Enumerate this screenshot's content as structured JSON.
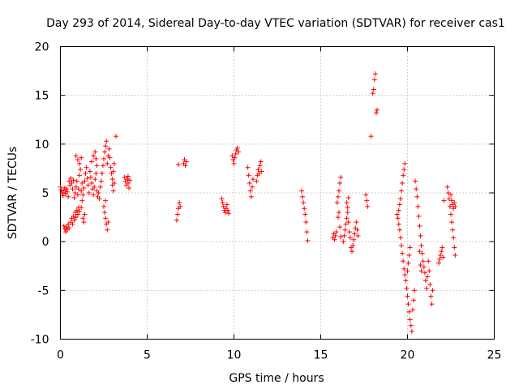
{
  "chart_data": {
    "type": "scatter",
    "title": "Day 293 of 2014, Sidereal Day-to-day VTEC variation (SDTVAR) for receiver cas1",
    "xlabel": "GPS time / hours",
    "ylabel": "SDTVAR / TECUs",
    "xlim": [
      0,
      25
    ],
    "ylim": [
      -10,
      20
    ],
    "xticks": [
      "0",
      "5",
      "10",
      "15",
      "20",
      "25"
    ],
    "yticks": [
      "-10",
      "-5",
      "0",
      "5",
      "10",
      "15",
      "20"
    ],
    "grid": true,
    "marker": "+",
    "series": [
      {
        "name": "cas1",
        "color": "#ff0000",
        "points": [
          [
            0.0,
            5.6
          ],
          [
            0.05,
            5.3
          ],
          [
            0.1,
            5.0
          ],
          [
            0.15,
            4.7
          ],
          [
            0.2,
            5.2
          ],
          [
            0.25,
            5.5
          ],
          [
            0.3,
            4.9
          ],
          [
            0.35,
            5.4
          ],
          [
            0.4,
            5.1
          ],
          [
            0.45,
            4.6
          ],
          [
            0.2,
            1.6
          ],
          [
            0.25,
            1.3
          ],
          [
            0.3,
            1.0
          ],
          [
            0.35,
            1.5
          ],
          [
            0.4,
            1.2
          ],
          [
            0.45,
            1.8
          ],
          [
            0.5,
            1.4
          ],
          [
            0.5,
            6.2
          ],
          [
            0.55,
            5.8
          ],
          [
            0.6,
            6.5
          ],
          [
            0.65,
            6.0
          ],
          [
            0.7,
            5.4
          ],
          [
            0.75,
            6.3
          ],
          [
            0.6,
            2.0
          ],
          [
            0.65,
            2.4
          ],
          [
            0.7,
            1.8
          ],
          [
            0.75,
            2.6
          ],
          [
            0.8,
            2.2
          ],
          [
            0.85,
            3.0
          ],
          [
            0.9,
            2.5
          ],
          [
            0.95,
            3.2
          ],
          [
            1.0,
            2.8
          ],
          [
            1.05,
            3.5
          ],
          [
            1.1,
            3.1
          ],
          [
            0.8,
            4.5
          ],
          [
            0.85,
            5.0
          ],
          [
            0.9,
            5.6
          ],
          [
            0.95,
            6.2
          ],
          [
            1.0,
            4.8
          ],
          [
            1.05,
            5.4
          ],
          [
            1.1,
            6.8
          ],
          [
            1.15,
            7.4
          ],
          [
            1.2,
            5.2
          ],
          [
            1.25,
            6.0
          ],
          [
            0.9,
            8.8
          ],
          [
            1.0,
            8.4
          ],
          [
            1.1,
            8.0
          ],
          [
            1.2,
            8.6
          ],
          [
            1.2,
            3.5
          ],
          [
            1.25,
            4.2
          ],
          [
            1.3,
            4.8
          ],
          [
            1.35,
            5.5
          ],
          [
            1.4,
            6.2
          ],
          [
            1.45,
            7.0
          ],
          [
            1.5,
            7.6
          ],
          [
            1.55,
            6.5
          ],
          [
            1.6,
            5.8
          ],
          [
            1.65,
            5.0
          ],
          [
            1.3,
            2.4
          ],
          [
            1.35,
            2.0
          ],
          [
            1.4,
            2.8
          ],
          [
            1.7,
            7.2
          ],
          [
            1.75,
            6.6
          ],
          [
            1.8,
            6.0
          ],
          [
            1.85,
            5.4
          ],
          [
            1.9,
            4.8
          ],
          [
            1.95,
            5.6
          ],
          [
            2.0,
            6.4
          ],
          [
            2.05,
            7.0
          ],
          [
            2.1,
            5.2
          ],
          [
            2.15,
            4.6
          ],
          [
            1.8,
            8.2
          ],
          [
            1.9,
            8.8
          ],
          [
            2.0,
            9.2
          ],
          [
            2.05,
            8.5
          ],
          [
            2.1,
            7.8
          ],
          [
            2.2,
            5.0
          ],
          [
            2.25,
            4.4
          ],
          [
            2.3,
            5.6
          ],
          [
            2.35,
            6.2
          ],
          [
            2.4,
            7.0
          ],
          [
            2.45,
            7.8
          ],
          [
            2.5,
            8.5
          ],
          [
            2.55,
            9.2
          ],
          [
            2.6,
            9.8
          ],
          [
            2.65,
            10.3
          ],
          [
            2.5,
            3.6
          ],
          [
            2.55,
            3.0
          ],
          [
            2.6,
            2.4
          ],
          [
            2.65,
            1.8
          ],
          [
            2.7,
            1.2
          ],
          [
            2.75,
            2.0
          ],
          [
            2.6,
            4.2
          ],
          [
            2.7,
            8.0
          ],
          [
            2.75,
            8.8
          ],
          [
            2.8,
            9.5
          ],
          [
            2.85,
            8.6
          ],
          [
            2.9,
            7.6
          ],
          [
            2.95,
            7.0
          ],
          [
            3.0,
            6.4
          ],
          [
            3.05,
            7.2
          ],
          [
            3.1,
            8.0
          ],
          [
            3.2,
            10.8
          ],
          [
            3.0,
            5.8
          ],
          [
            3.05,
            5.2
          ],
          [
            3.1,
            6.0
          ],
          [
            3.7,
            6.6
          ],
          [
            3.75,
            6.2
          ],
          [
            3.8,
            5.8
          ],
          [
            3.85,
            6.4
          ],
          [
            3.9,
            6.0
          ],
          [
            3.95,
            5.5
          ],
          [
            4.0,
            6.3
          ],
          [
            3.9,
            6.7
          ],
          [
            6.7,
            2.2
          ],
          [
            6.75,
            2.8
          ],
          [
            6.8,
            3.4
          ],
          [
            6.85,
            4.0
          ],
          [
            6.9,
            3.6
          ],
          [
            6.8,
            7.9
          ],
          [
            7.1,
            8.0
          ],
          [
            7.15,
            8.4
          ],
          [
            7.2,
            7.8
          ],
          [
            7.25,
            8.2
          ],
          [
            9.3,
            4.4
          ],
          [
            9.35,
            4.0
          ],
          [
            9.4,
            3.6
          ],
          [
            9.45,
            3.2
          ],
          [
            9.5,
            3.0
          ],
          [
            9.55,
            3.4
          ],
          [
            9.6,
            3.8
          ],
          [
            9.65,
            3.2
          ],
          [
            9.7,
            2.9
          ],
          [
            9.9,
            8.8
          ],
          [
            9.95,
            8.4
          ],
          [
            10.0,
            8.0
          ],
          [
            10.05,
            8.6
          ],
          [
            10.1,
            9.0
          ],
          [
            10.15,
            9.4
          ],
          [
            10.2,
            9.6
          ],
          [
            10.25,
            9.2
          ],
          [
            10.8,
            7.6
          ],
          [
            10.85,
            6.8
          ],
          [
            10.9,
            6.0
          ],
          [
            10.95,
            5.2
          ],
          [
            11.0,
            4.6
          ],
          [
            11.05,
            5.6
          ],
          [
            11.1,
            6.4
          ],
          [
            11.3,
            6.2
          ],
          [
            11.35,
            6.8
          ],
          [
            11.4,
            7.4
          ],
          [
            11.45,
            7.0
          ],
          [
            11.5,
            7.8
          ],
          [
            11.55,
            8.2
          ],
          [
            11.6,
            7.2
          ],
          [
            13.9,
            5.2
          ],
          [
            13.95,
            4.6
          ],
          [
            14.0,
            4.0
          ],
          [
            14.05,
            3.4
          ],
          [
            14.1,
            2.8
          ],
          [
            14.15,
            2.0
          ],
          [
            14.2,
            1.0
          ],
          [
            14.25,
            0.1
          ],
          [
            15.7,
            0.4
          ],
          [
            15.75,
            0.8
          ],
          [
            15.8,
            0.2
          ],
          [
            15.85,
            0.6
          ],
          [
            15.9,
            1.0
          ],
          [
            15.95,
            4.0
          ],
          [
            16.0,
            4.6
          ],
          [
            16.05,
            5.2
          ],
          [
            16.1,
            6.0
          ],
          [
            16.15,
            6.6
          ],
          [
            16.0,
            2.5
          ],
          [
            16.05,
            3.0
          ],
          [
            16.1,
            1.5
          ],
          [
            16.15,
            0.5
          ],
          [
            16.3,
            0.0
          ],
          [
            16.35,
            0.6
          ],
          [
            16.4,
            1.2
          ],
          [
            16.45,
            1.8
          ],
          [
            16.5,
            2.4
          ],
          [
            16.55,
            3.0
          ],
          [
            16.6,
            2.0
          ],
          [
            16.65,
            1.0
          ],
          [
            16.7,
            0.4
          ],
          [
            16.75,
            -0.6
          ],
          [
            16.5,
            4.0
          ],
          [
            16.55,
            3.5
          ],
          [
            16.6,
            4.5
          ],
          [
            16.8,
            -1.0
          ],
          [
            16.85,
            -0.4
          ],
          [
            16.9,
            0.2
          ],
          [
            16.95,
            0.8
          ],
          [
            17.0,
            1.4
          ],
          [
            17.05,
            2.0
          ],
          [
            17.1,
            1.2
          ],
          [
            17.15,
            0.6
          ],
          [
            17.6,
            4.8
          ],
          [
            17.65,
            4.2
          ],
          [
            17.7,
            3.6
          ],
          [
            17.9,
            10.8
          ],
          [
            18.0,
            15.2
          ],
          [
            18.05,
            15.6
          ],
          [
            18.1,
            16.6
          ],
          [
            18.15,
            17.2
          ],
          [
            18.2,
            13.2
          ],
          [
            18.25,
            13.5
          ],
          [
            19.4,
            2.8
          ],
          [
            19.45,
            2.4
          ],
          [
            19.5,
            1.8
          ],
          [
            19.55,
            1.2
          ],
          [
            19.6,
            0.4
          ],
          [
            19.65,
            -0.4
          ],
          [
            19.7,
            -1.2
          ],
          [
            19.75,
            -2.0
          ],
          [
            19.8,
            -2.8
          ],
          [
            19.85,
            -3.4
          ],
          [
            19.5,
            3.2
          ],
          [
            19.55,
            3.8
          ],
          [
            19.6,
            4.4
          ],
          [
            19.65,
            5.2
          ],
          [
            19.7,
            6.0
          ],
          [
            19.75,
            6.8
          ],
          [
            19.8,
            7.4
          ],
          [
            19.85,
            8.0
          ],
          [
            19.9,
            -4.0
          ],
          [
            19.95,
            -4.8
          ],
          [
            20.0,
            -5.6
          ],
          [
            20.05,
            -6.4
          ],
          [
            20.1,
            -7.2
          ],
          [
            20.15,
            -8.0
          ],
          [
            20.2,
            -8.6
          ],
          [
            20.25,
            -9.2
          ],
          [
            20.0,
            -3.0
          ],
          [
            20.05,
            -2.2
          ],
          [
            20.1,
            -1.4
          ],
          [
            20.15,
            -0.6
          ],
          [
            20.3,
            -7.0
          ],
          [
            20.35,
            -6.0
          ],
          [
            20.4,
            -5.0
          ],
          [
            20.45,
            6.2
          ],
          [
            20.5,
            5.4
          ],
          [
            20.55,
            4.6
          ],
          [
            20.6,
            3.6
          ],
          [
            20.65,
            2.6
          ],
          [
            20.7,
            1.6
          ],
          [
            20.75,
            0.6
          ],
          [
            20.8,
            -0.4
          ],
          [
            20.85,
            -1.2
          ],
          [
            20.9,
            -2.0
          ],
          [
            20.95,
            -2.6
          ],
          [
            21.0,
            -3.2
          ],
          [
            21.05,
            -4.0
          ],
          [
            21.1,
            -4.8
          ],
          [
            21.15,
            -3.6
          ],
          [
            20.7,
            -1.0
          ],
          [
            20.75,
            -2.4
          ],
          [
            20.8,
            -3.0
          ],
          [
            21.2,
            -2.0
          ],
          [
            21.25,
            -3.0
          ],
          [
            21.3,
            -4.4
          ],
          [
            21.35,
            -5.6
          ],
          [
            21.4,
            -6.4
          ],
          [
            21.45,
            -5.0
          ],
          [
            21.8,
            -2.2
          ],
          [
            21.85,
            -1.8
          ],
          [
            21.9,
            -1.4
          ],
          [
            21.95,
            -1.0
          ],
          [
            22.0,
            -0.6
          ],
          [
            22.05,
            -1.6
          ],
          [
            22.1,
            4.2
          ],
          [
            22.3,
            5.6
          ],
          [
            22.35,
            5.0
          ],
          [
            22.4,
            4.4
          ],
          [
            22.45,
            3.6
          ],
          [
            22.5,
            2.8
          ],
          [
            22.55,
            2.0
          ],
          [
            22.6,
            1.2
          ],
          [
            22.65,
            0.4
          ],
          [
            22.7,
            -0.6
          ],
          [
            22.75,
            -1.4
          ],
          [
            22.5,
            4.8
          ],
          [
            22.55,
            4.2
          ],
          [
            22.6,
            3.8
          ],
          [
            22.65,
            3.4
          ],
          [
            22.7,
            4.0
          ],
          [
            22.75,
            3.6
          ]
        ]
      }
    ]
  }
}
